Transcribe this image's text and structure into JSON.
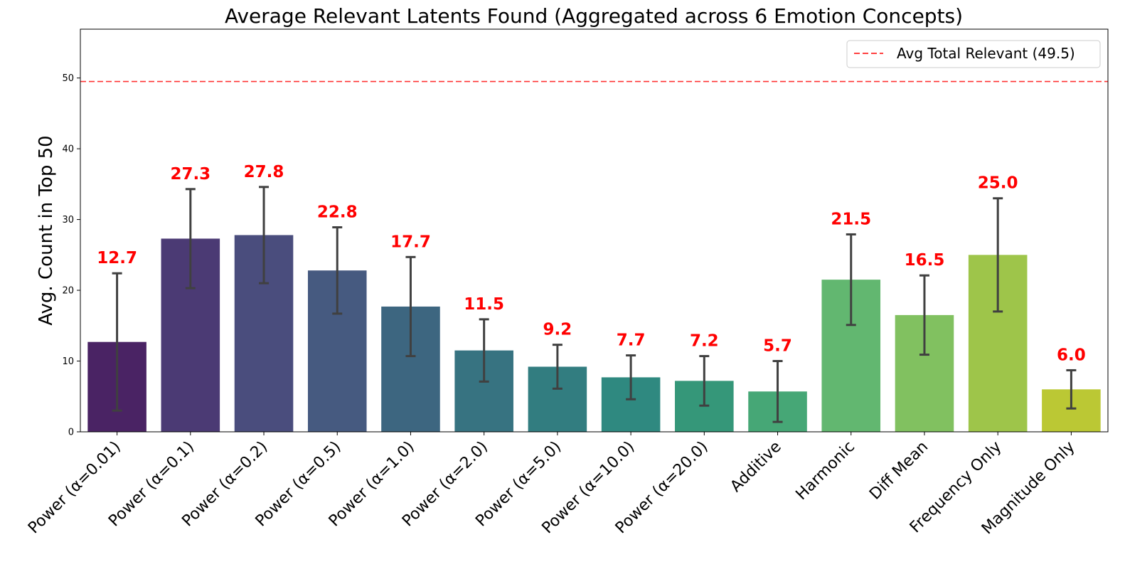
{
  "chart_data": {
    "type": "bar",
    "title": "Average Relevant Latents Found (Aggregated across 6 Emotion Concepts)",
    "xlabel": "",
    "ylabel": "Avg. Count in Top 50",
    "ylim": [
      0,
      56.9
    ],
    "yticks": [
      0,
      10,
      20,
      30,
      40,
      50
    ],
    "grid": false,
    "legend_position": "top-right",
    "categories": [
      "Power (α=0.01)",
      "Power (α=0.1)",
      "Power (α=0.2)",
      "Power (α=0.5)",
      "Power (α=1.0)",
      "Power (α=2.0)",
      "Power (α=5.0)",
      "Power (α=10.0)",
      "Power (α=20.0)",
      "Additive",
      "Harmonic",
      "Diff Mean",
      "Frequency Only",
      "Magnitude Only"
    ],
    "values": [
      12.7,
      27.3,
      27.8,
      22.8,
      17.7,
      11.5,
      9.2,
      7.7,
      7.2,
      5.7,
      21.5,
      16.5,
      25.0,
      6.0
    ],
    "data_labels": [
      "12.7",
      "27.3",
      "27.8",
      "22.8",
      "17.7",
      "11.5",
      "9.2",
      "7.7",
      "7.2",
      "5.7",
      "21.5",
      "16.5",
      "25.0",
      "6.0"
    ],
    "error": [
      9.7,
      7.0,
      6.8,
      6.1,
      7.0,
      4.4,
      3.1,
      3.1,
      3.5,
      4.3,
      6.4,
      5.6,
      8.0,
      2.7
    ],
    "colors": [
      "#4a2364",
      "#4b3a74",
      "#4a4d7d",
      "#465a80",
      "#3d6680",
      "#377381",
      "#327d80",
      "#2f8980",
      "#359779",
      "#46a776",
      "#62b770",
      "#81c160",
      "#9ec54a",
      "#bbc834"
    ],
    "reference_line": {
      "value": 49.5,
      "label": "Avg Total Relevant (49.5)",
      "color": "#ff0000",
      "style": "dashed"
    },
    "label_color": "#ff0000",
    "errorbar_color": "#404040"
  }
}
